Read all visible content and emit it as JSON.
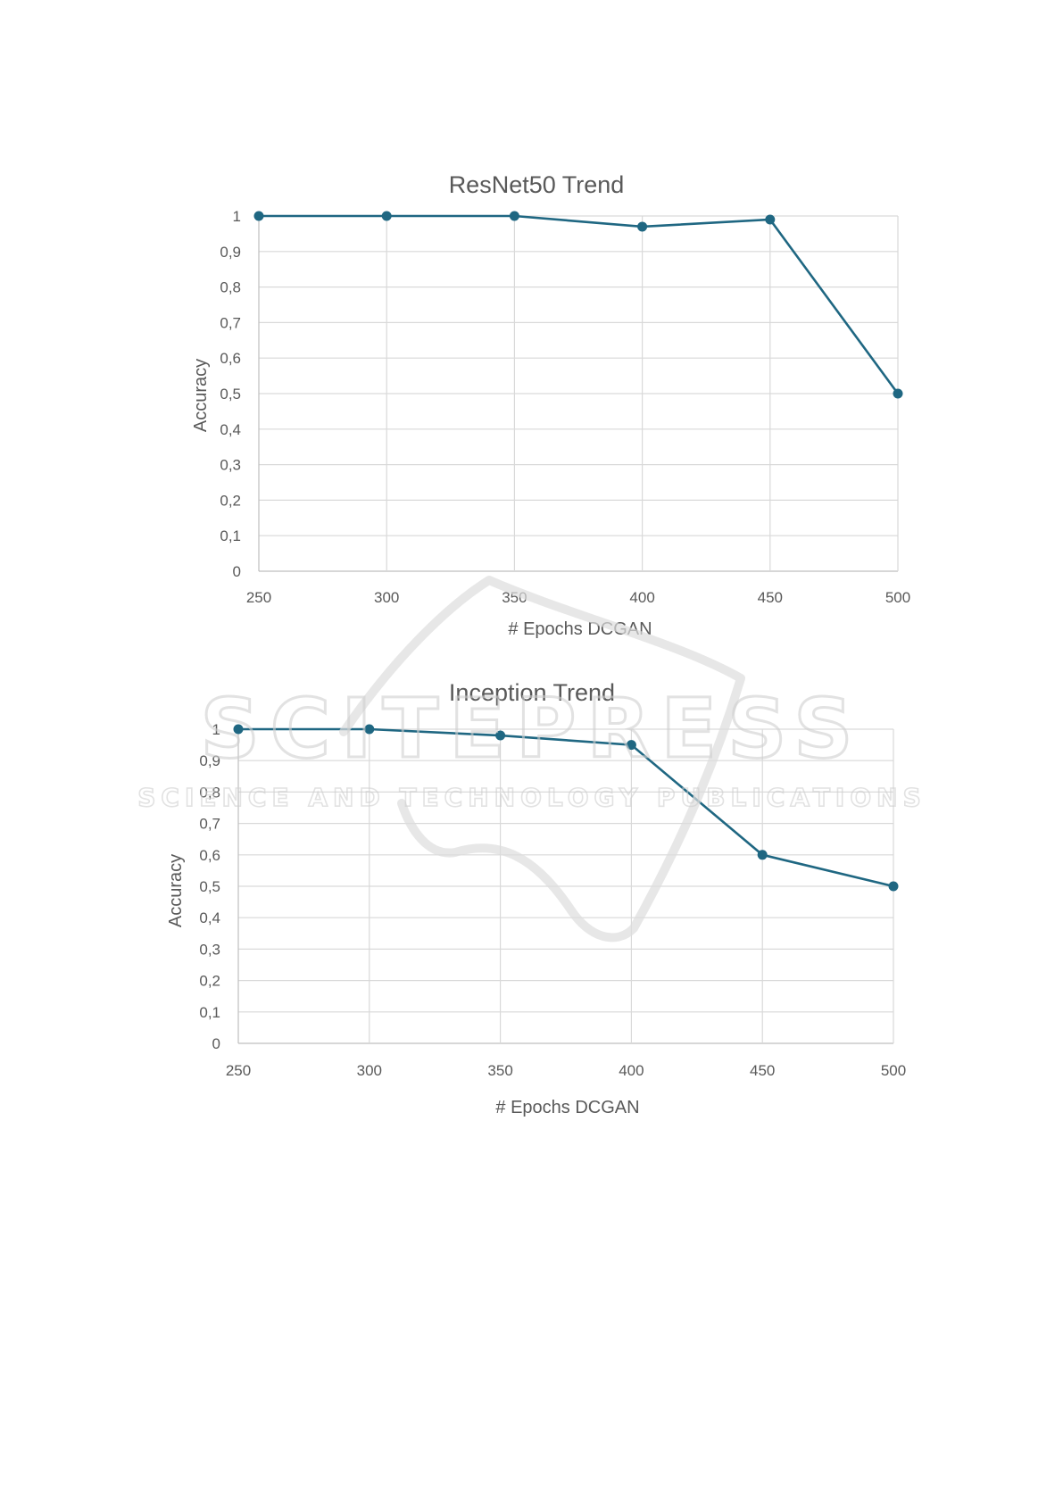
{
  "chart_data": [
    {
      "type": "line",
      "title": "ResNet50 Trend",
      "xlabel": "# Epochs DCGAN",
      "ylabel": "Accuracy",
      "x": [
        250,
        300,
        350,
        400,
        450,
        500
      ],
      "x_tick_labels": [
        "250",
        "300",
        "350",
        "400",
        "450",
        "500"
      ],
      "ylim": [
        0,
        1
      ],
      "y_tick_labels": [
        "0",
        "0,1",
        "0,2",
        "0,3",
        "0,4",
        "0,5",
        "0,6",
        "0,7",
        "0,8",
        "0,9",
        "1"
      ],
      "series": [
        {
          "values": [
            1.0,
            1.0,
            1.0,
            0.97,
            0.99,
            0.5
          ],
          "color": "#1f6782"
        }
      ],
      "grid": true
    },
    {
      "type": "line",
      "title": "Inception Trend",
      "xlabel": "# Epochs DCGAN",
      "ylabel": "Accuracy",
      "x": [
        250,
        300,
        350,
        400,
        450,
        500
      ],
      "x_tick_labels": [
        "250",
        "300",
        "350",
        "400",
        "450",
        "500"
      ],
      "ylim": [
        0,
        1
      ],
      "y_tick_labels": [
        "0",
        "0,1",
        "0,2",
        "0,3",
        "0,4",
        "0,5",
        "0,6",
        "0,7",
        "0,8",
        "0,9",
        "1"
      ],
      "series": [
        {
          "values": [
            1.0,
            1.0,
            0.98,
            0.95,
            0.6,
            0.5
          ],
          "color": "#1f6782"
        }
      ],
      "grid": true
    }
  ],
  "watermark": {
    "line1": "SCITEPRESS",
    "line2": "SCIENCE AND TECHNOLOGY PUBLICATIONS"
  }
}
